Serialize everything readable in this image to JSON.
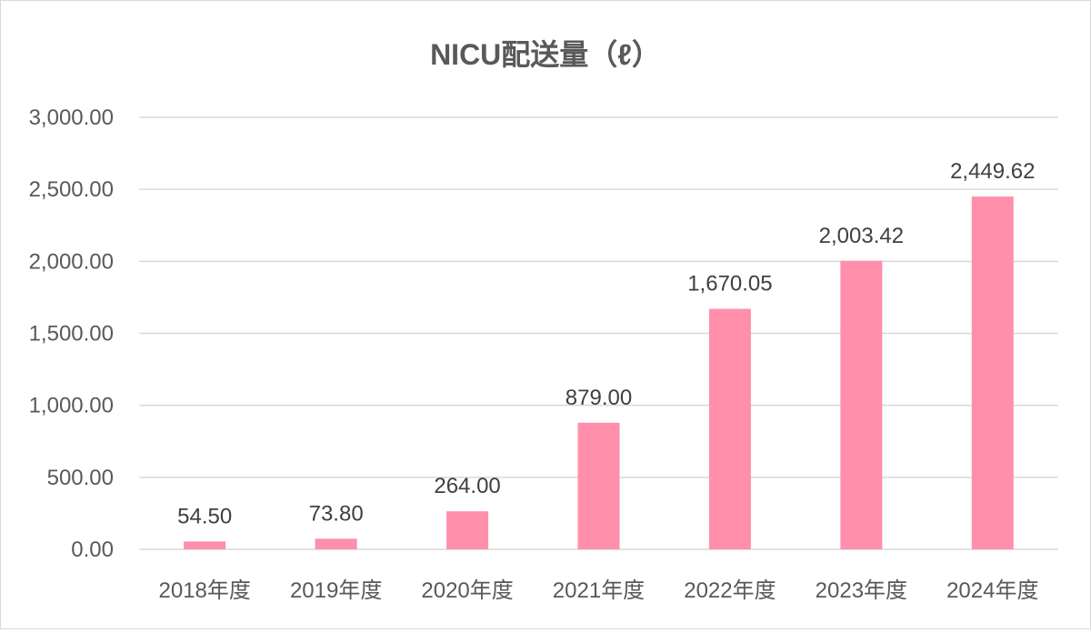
{
  "chart_data": {
    "type": "bar",
    "title": "NICU配送量（ℓ）",
    "xlabel": "",
    "ylabel": "",
    "categories": [
      "2018年度",
      "2019年度",
      "2020年度",
      "2021年度",
      "2022年度",
      "2023年度",
      "2024年度"
    ],
    "values": [
      54.5,
      73.8,
      264.0,
      879.0,
      1670.05,
      2003.42,
      2449.62
    ],
    "data_labels": [
      "54.50",
      "73.80",
      "264.00",
      "879.00",
      "1,670.05",
      "2,003.42",
      "2,449.62"
    ],
    "ylim": [
      0,
      3000
    ],
    "yticks": [
      0,
      500,
      1000,
      1500,
      2000,
      2500,
      3000
    ],
    "ytick_labels": [
      "0.00",
      "500.00",
      "1,000.00",
      "1,500.00",
      "2,000.00",
      "2,500.00",
      "3,000.00"
    ],
    "grid": true,
    "legend": "none",
    "bar_color": "#ff8fab"
  }
}
